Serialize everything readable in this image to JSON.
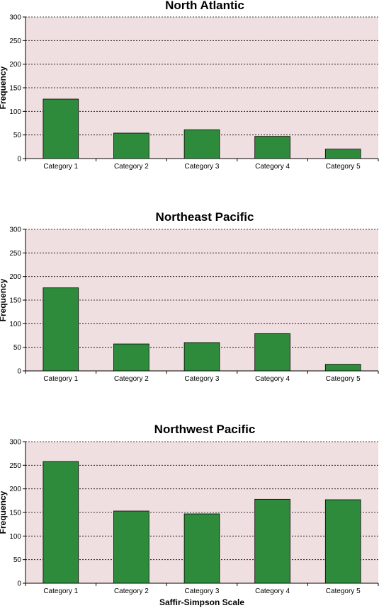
{
  "colors": {
    "plot_background": "#f0dfe0",
    "bar_fill": "#2e8b3c",
    "bar_stroke": "#000000",
    "gridline": "#000000"
  },
  "chart_data": [
    {
      "type": "bar",
      "title": "North Atlantic",
      "xlabel": "",
      "ylabel": "Frequency",
      "ylim": [
        0,
        300
      ],
      "yticks": [
        "0",
        "50",
        "100",
        "150",
        "200",
        "250",
        "300"
      ],
      "grid": "horizontal dashed",
      "categories": [
        "Category 1",
        "Category 2",
        "Category 3",
        "Category 4",
        "Category 5"
      ],
      "values": [
        126,
        54,
        61,
        47,
        20
      ]
    },
    {
      "type": "bar",
      "title": "Northeast Pacific",
      "xlabel": "",
      "ylabel": "Frequency",
      "ylim": [
        0,
        300
      ],
      "yticks": [
        "0",
        "50",
        "100",
        "150",
        "200",
        "250",
        "300"
      ],
      "grid": "horizontal dashed",
      "categories": [
        "Category 1",
        "Category 2",
        "Category 3",
        "Category 4",
        "Category 5"
      ],
      "values": [
        176,
        57,
        60,
        79,
        14
      ]
    },
    {
      "type": "bar",
      "title": "Northwest Pacific",
      "xlabel": "Saffir-Simpson Scale",
      "ylabel": "Frequency",
      "ylim": [
        0,
        300
      ],
      "yticks": [
        "0",
        "50",
        "100",
        "150",
        "200",
        "250",
        "300"
      ],
      "grid": "horizontal dashed",
      "categories": [
        "Category 1",
        "Category 2",
        "Category 3",
        "Category 4",
        "Category 5"
      ],
      "values": [
        258,
        153,
        147,
        178,
        177
      ]
    }
  ]
}
